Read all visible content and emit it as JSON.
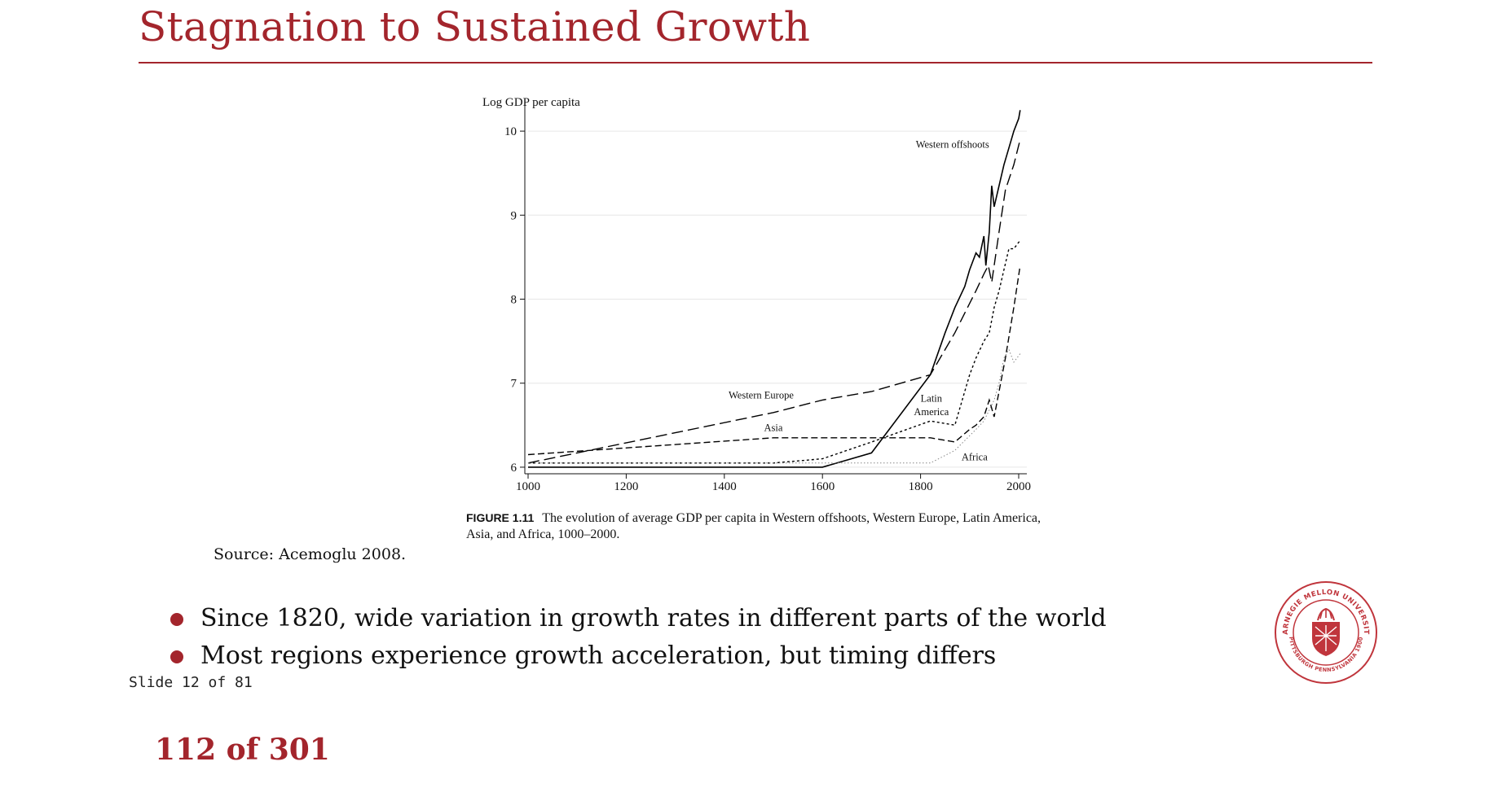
{
  "slide": {
    "title": "Stagnation to Sustained Growth",
    "source": "Source: Acemoglu 2008.",
    "bullets": [
      "Since 1820, wide variation in growth rates in different parts of the world",
      "Most regions experience growth acceleration, but timing differs"
    ],
    "slide_counter": "Slide 12 of 81",
    "page_number": "112 of 301",
    "accent_color": "#a3252c"
  },
  "figure": {
    "label": "FIGURE 1.11",
    "caption": "The evolution of average GDP per capita in Western offshoots, Western Europe, Latin America, Asia, and Africa, 1000–2000."
  },
  "logo": {
    "outer_text": "CARNEGIE MELLON UNIVERSITY",
    "inner_text": "PITTSBURGH PENNSYLVANIA 1900"
  },
  "chart_data": {
    "type": "line",
    "ylabel": "Log GDP per capita",
    "xlabel": "",
    "xlim": [
      1000,
      2000
    ],
    "ylim": [
      6,
      10.25
    ],
    "xticks": [
      1000,
      1200,
      1400,
      1600,
      1800,
      2000
    ],
    "yticks": [
      6,
      7,
      8,
      9,
      10
    ],
    "grid": true,
    "series": [
      {
        "name": "Western offshoots",
        "style": "solid",
        "x": [
          1000,
          1600,
          1700,
          1820,
          1850,
          1870,
          1890,
          1900,
          1913,
          1920,
          1929,
          1933,
          1940,
          1945,
          1950,
          1960,
          1970,
          1980,
          1990,
          2000,
          2003
        ],
        "y": [
          6.0,
          6.0,
          6.17,
          7.1,
          7.6,
          7.9,
          8.15,
          8.35,
          8.55,
          8.5,
          8.75,
          8.4,
          8.8,
          9.35,
          9.1,
          9.35,
          9.6,
          9.8,
          10.0,
          10.15,
          10.25
        ]
      },
      {
        "name": "Western Europe",
        "style": "longdash",
        "x": [
          1000,
          1500,
          1600,
          1700,
          1820,
          1870,
          1913,
          1929,
          1938,
          1945,
          1950,
          1960,
          1973,
          1990,
          2003
        ],
        "y": [
          6.05,
          6.65,
          6.8,
          6.9,
          7.1,
          7.6,
          8.1,
          8.3,
          8.4,
          8.2,
          8.4,
          8.8,
          9.3,
          9.6,
          9.9
        ]
      },
      {
        "name": "Latin America",
        "style": "dotted",
        "x": [
          1000,
          1500,
          1600,
          1700,
          1820,
          1870,
          1900,
          1913,
          1929,
          1940,
          1950,
          1960,
          1970,
          1980,
          1990,
          2003
        ],
        "y": [
          6.05,
          6.05,
          6.1,
          6.3,
          6.55,
          6.5,
          7.1,
          7.3,
          7.5,
          7.6,
          7.9,
          8.1,
          8.35,
          8.6,
          8.6,
          8.7
        ]
      },
      {
        "name": "Asia",
        "style": "dashed",
        "x": [
          1000,
          1500,
          1600,
          1700,
          1820,
          1870,
          1900,
          1913,
          1929,
          1940,
          1950,
          1960,
          1973,
          1990,
          2003
        ],
        "y": [
          6.15,
          6.35,
          6.35,
          6.35,
          6.35,
          6.3,
          6.45,
          6.5,
          6.6,
          6.8,
          6.6,
          6.9,
          7.3,
          7.9,
          8.4
        ]
      },
      {
        "name": "Africa",
        "style": "dotted-fine",
        "x": [
          1000,
          1500,
          1600,
          1700,
          1820,
          1870,
          1913,
          1929,
          1950,
          1960,
          1970,
          1980,
          1990,
          2003
        ],
        "y": [
          6.05,
          6.05,
          6.05,
          6.05,
          6.05,
          6.2,
          6.45,
          6.55,
          6.8,
          7.0,
          7.3,
          7.4,
          7.25,
          7.35
        ]
      }
    ],
    "annotations": [
      {
        "text": "Western offshoots",
        "x": 1865,
        "y": 9.8
      },
      {
        "text": "Western Europe",
        "x": 1475,
        "y": 6.82
      },
      {
        "text": "Latin",
        "x": 1822,
        "y": 6.78
      },
      {
        "text": "America",
        "x": 1822,
        "y": 6.62
      },
      {
        "text": "Asia",
        "x": 1500,
        "y": 6.43
      },
      {
        "text": "Africa",
        "x": 1910,
        "y": 6.08
      }
    ]
  }
}
